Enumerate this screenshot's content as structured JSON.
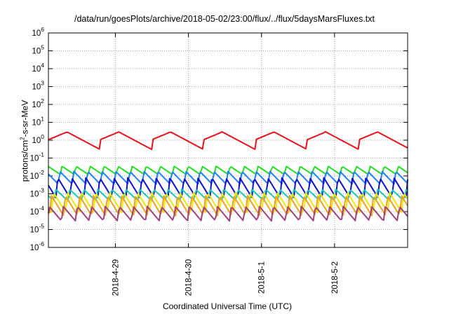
{
  "chart_data": {
    "type": "line",
    "title": "/data/run/goesPlots/archive/2018-05-02/23:00/flux/../flux/5daysMarsFluxes.txt",
    "xlabel": "Coordinated Universal Time (UTC)",
    "ylabel_parts": [
      "protons/cm",
      "2",
      "-s-sr-MeV"
    ],
    "y_scale": "log",
    "ylim": [
      1e-06,
      1000000.0
    ],
    "y_ticks": [
      {
        "base": "10",
        "exp": "-6",
        "value": 1e-06
      },
      {
        "base": "10",
        "exp": "-5",
        "value": 1e-05
      },
      {
        "base": "10",
        "exp": "-4",
        "value": 0.0001
      },
      {
        "base": "10",
        "exp": "-3",
        "value": 0.001
      },
      {
        "base": "10",
        "exp": "-2",
        "value": 0.01
      },
      {
        "base": "10",
        "exp": "-1",
        "value": 0.1
      },
      {
        "base": "10",
        "exp": "0",
        "value": 1
      },
      {
        "base": "10",
        "exp": "1",
        "value": 10
      },
      {
        "base": "10",
        "exp": "2",
        "value": 100
      },
      {
        "base": "10",
        "exp": "3",
        "value": 1000
      },
      {
        "base": "10",
        "exp": "4",
        "value": 10000
      },
      {
        "base": "10",
        "exp": "5",
        "value": 100000
      },
      {
        "base": "10",
        "exp": "6",
        "value": 1000000
      }
    ],
    "x_range_days": [
      "2018-04-28 02:00",
      "2018-05-03 00:00"
    ],
    "x_ticks": [
      "2018-4-29",
      "2018-4-30",
      "2018-5-1",
      "2018-5-2"
    ],
    "grid": true,
    "series": [
      {
        "color": "#e8101a",
        "envelope": [
          3.0,
          0.3
        ],
        "baseline": 0.8,
        "amplitude": 4.0,
        "period_hours": 17,
        "note": "sawtooth"
      },
      {
        "color": "#22dd22",
        "envelope": [
          0.035,
          0.012
        ],
        "baseline": 0.02
      },
      {
        "color": "#1f7fff",
        "envelope": [
          0.018,
          0.0035
        ],
        "baseline": 0.009
      },
      {
        "color": "#1010cc",
        "envelope": [
          0.008,
          0.0006
        ],
        "baseline": 0.0025
      },
      {
        "color": "#19c7b8",
        "envelope": [
          0.0018,
          0.0004
        ],
        "baseline": 0.001
      },
      {
        "color": "#f2e600",
        "envelope": [
          0.0012,
          9e-05
        ],
        "baseline": 0.0004
      },
      {
        "color": "#f0a020",
        "envelope": [
          0.0008,
          6e-05
        ],
        "baseline": 0.00025
      },
      {
        "color": "#a04080",
        "envelope": [
          0.0002,
          3e-05
        ],
        "baseline": 8e-05
      }
    ]
  }
}
